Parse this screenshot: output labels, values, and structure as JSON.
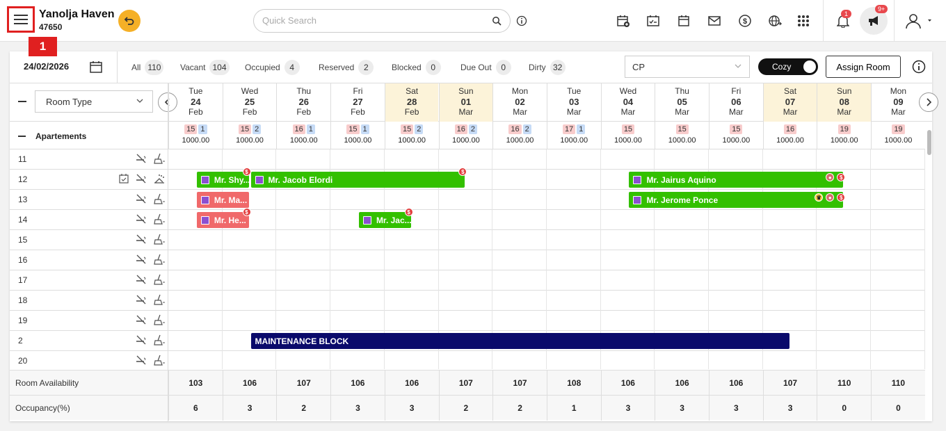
{
  "header": {
    "hotel_name": "Yanolja Haven",
    "hotel_id": "47650",
    "menu_step_badge": "1",
    "search_placeholder": "Quick Search",
    "notification_count": "1",
    "announcement_count": "9+"
  },
  "toolbar_icons": [
    "new-reservation-icon",
    "checklist-calendar-icon",
    "calendar-icon",
    "mail-icon",
    "dollar-icon",
    "globe-icon",
    "apps-grid-icon"
  ],
  "filters": {
    "date": "24/02/2026",
    "stats": [
      {
        "label": "All",
        "count": "110"
      },
      {
        "label": "Vacant",
        "count": "104"
      },
      {
        "label": "Occupied",
        "count": "4"
      },
      {
        "label": "Reserved",
        "count": "2"
      },
      {
        "label": "Blocked",
        "count": "0"
      },
      {
        "label": "Due Out",
        "count": "0"
      },
      {
        "label": "Dirty",
        "count": "32"
      }
    ],
    "rate_plan": "CP",
    "view_toggle": "Cozy",
    "assign_room": "Assign Room"
  },
  "room_type_select": "Room Type",
  "group_name": "Apartements",
  "days": [
    {
      "dow": "Tue",
      "day": "24",
      "mon": "Feb",
      "weekend": false,
      "pills": [
        "15",
        "1"
      ],
      "rate": "1000.00"
    },
    {
      "dow": "Wed",
      "day": "25",
      "mon": "Feb",
      "weekend": false,
      "pills": [
        "15",
        "2"
      ],
      "rate": "1000.00"
    },
    {
      "dow": "Thu",
      "day": "26",
      "mon": "Feb",
      "weekend": false,
      "pills": [
        "16",
        "1"
      ],
      "rate": "1000.00"
    },
    {
      "dow": "Fri",
      "day": "27",
      "mon": "Feb",
      "weekend": false,
      "pills": [
        "15",
        "1"
      ],
      "rate": "1000.00"
    },
    {
      "dow": "Sat",
      "day": "28",
      "mon": "Feb",
      "weekend": true,
      "pills": [
        "15",
        "2"
      ],
      "rate": "1000.00"
    },
    {
      "dow": "Sun",
      "day": "01",
      "mon": "Mar",
      "weekend": true,
      "pills": [
        "16",
        "2"
      ],
      "rate": "1000.00"
    },
    {
      "dow": "Mon",
      "day": "02",
      "mon": "Mar",
      "weekend": false,
      "pills": [
        "16",
        "2"
      ],
      "rate": "1000.00"
    },
    {
      "dow": "Tue",
      "day": "03",
      "mon": "Mar",
      "weekend": false,
      "pills": [
        "17",
        "1"
      ],
      "rate": "1000.00"
    },
    {
      "dow": "Wed",
      "day": "04",
      "mon": "Mar",
      "weekend": false,
      "pills": [
        "15"
      ],
      "rate": "1000.00"
    },
    {
      "dow": "Thu",
      "day": "05",
      "mon": "Mar",
      "weekend": false,
      "pills": [
        "15"
      ],
      "rate": "1000.00"
    },
    {
      "dow": "Fri",
      "day": "06",
      "mon": "Mar",
      "weekend": false,
      "pills": [
        "15"
      ],
      "rate": "1000.00"
    },
    {
      "dow": "Sat",
      "day": "07",
      "mon": "Mar",
      "weekend": true,
      "pills": [
        "16"
      ],
      "rate": "1000.00"
    },
    {
      "dow": "Sun",
      "day": "08",
      "mon": "Mar",
      "weekend": true,
      "pills": [
        "19"
      ],
      "rate": "1000.00"
    },
    {
      "dow": "Mon",
      "day": "09",
      "mon": "Mar",
      "weekend": false,
      "pills": [
        "19"
      ],
      "rate": "1000.00"
    }
  ],
  "rooms": [
    {
      "number": "11",
      "checked": false,
      "dirty": false
    },
    {
      "number": "12",
      "checked": true,
      "dirty": true
    },
    {
      "number": "13",
      "checked": false,
      "dirty": false
    },
    {
      "number": "14",
      "checked": false,
      "dirty": false
    },
    {
      "number": "15",
      "checked": false,
      "dirty": false
    },
    {
      "number": "16",
      "checked": false,
      "dirty": false
    },
    {
      "number": "17",
      "checked": false,
      "dirty": false
    },
    {
      "number": "18",
      "checked": false,
      "dirty": false
    },
    {
      "number": "19",
      "checked": false,
      "dirty": false
    },
    {
      "number": "2",
      "checked": false,
      "dirty": false
    },
    {
      "number": "20",
      "checked": false,
      "dirty": false
    }
  ],
  "bookings": [
    {
      "room_index": 1,
      "start_day": 0.5,
      "end_day": 1.5,
      "name": "Mr. Shy...",
      "color": "green",
      "dollar": true,
      "flags": []
    },
    {
      "room_index": 1,
      "start_day": 1.5,
      "end_day": 5.5,
      "name": "Mr. Jacob Elordi",
      "color": "green",
      "dollar": true,
      "flags": []
    },
    {
      "room_index": 1,
      "start_day": 8.5,
      "end_day": 12.5,
      "name": "Mr. Jairus Aquino",
      "color": "green",
      "dollar": true,
      "flags": [
        "group"
      ]
    },
    {
      "room_index": 2,
      "start_day": 0.5,
      "end_day": 1.5,
      "name": "Mr. Ma...",
      "color": "red",
      "dollar": false,
      "flags": []
    },
    {
      "room_index": 2,
      "start_day": 8.5,
      "end_day": 12.5,
      "name": "Mr. Jerome Ponce",
      "color": "green",
      "dollar": true,
      "flags": [
        "vip",
        "group"
      ]
    },
    {
      "room_index": 3,
      "start_day": 0.5,
      "end_day": 1.5,
      "name": "Mr. He...",
      "color": "red",
      "dollar": true,
      "flags": []
    },
    {
      "room_index": 3,
      "start_day": 3.5,
      "end_day": 4.5,
      "name": "Mr. Jac...",
      "color": "green",
      "dollar": true,
      "flags": []
    },
    {
      "room_index": 9,
      "start_day": 1.5,
      "end_day": 11.5,
      "name": "MAINTENANCE BLOCK",
      "color": "navy",
      "dollar": false,
      "flags": []
    }
  ],
  "footer": {
    "availability_label": "Room Availability",
    "availability": [
      "103",
      "106",
      "107",
      "106",
      "106",
      "107",
      "107",
      "108",
      "106",
      "106",
      "106",
      "107",
      "110",
      "110"
    ],
    "occupancy_label": "Occupancy(%)",
    "occupancy": [
      "6",
      "3",
      "2",
      "3",
      "3",
      "2",
      "2",
      "1",
      "3",
      "3",
      "3",
      "3",
      "0",
      "0"
    ]
  },
  "colors": {
    "booking_green": "#33c000",
    "booking_red": "#f0696a",
    "maintenance_navy": "#0a0a6b",
    "weekend_bg": "#fcf3d9",
    "highlight_red": "#e02020"
  }
}
